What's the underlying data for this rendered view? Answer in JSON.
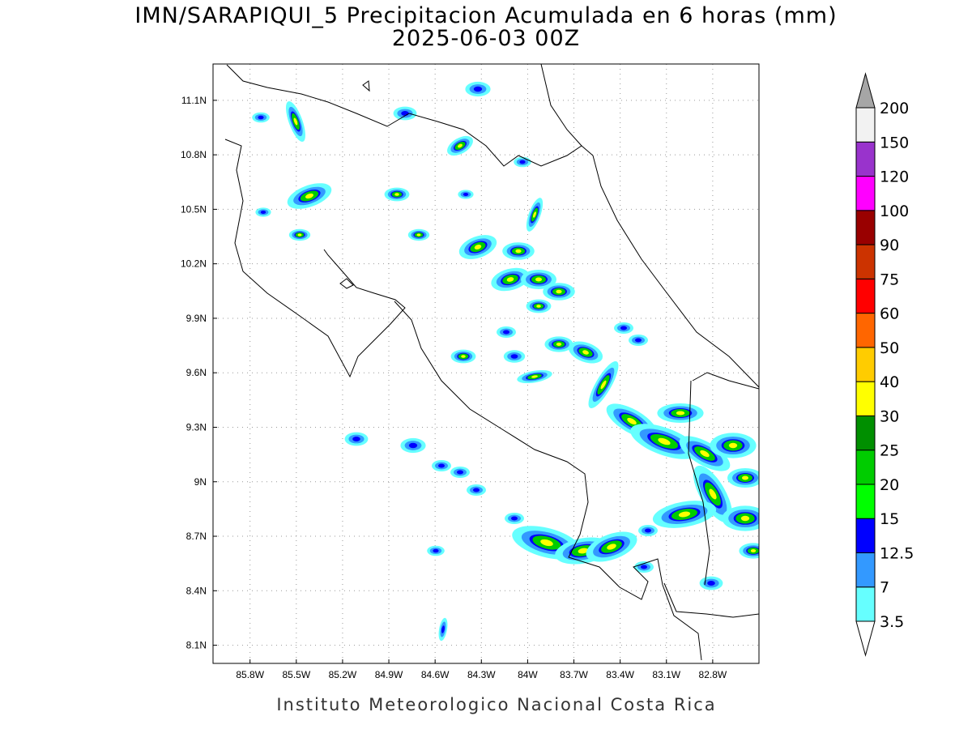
{
  "title": "IMN/SARAPIQUI_5 Precipitacion Acumulada en 6 horas (mm)",
  "subtitle": "2025-06-03 00Z",
  "footer": "Instituto Meteorologico Nacional Costa Rica",
  "map": {
    "lon_range": [
      -86.04,
      -82.5
    ],
    "lat_range": [
      8.0,
      11.3
    ],
    "grid": true,
    "lon_ticks": [
      {
        "value": -85.8,
        "label": "85.8W"
      },
      {
        "value": -85.5,
        "label": "85.5W"
      },
      {
        "value": -85.2,
        "label": "85.2W"
      },
      {
        "value": -84.9,
        "label": "84.9W"
      },
      {
        "value": -84.6,
        "label": "84.6W"
      },
      {
        "value": -84.3,
        "label": "84.3W"
      },
      {
        "value": -84.0,
        "label": "84W"
      },
      {
        "value": -83.7,
        "label": "83.7W"
      },
      {
        "value": -83.4,
        "label": "83.4W"
      },
      {
        "value": -83.1,
        "label": "83.1W"
      },
      {
        "value": -82.8,
        "label": "82.8W"
      }
    ],
    "lat_ticks": [
      {
        "value": 8.1,
        "label": "8.1N"
      },
      {
        "value": 8.4,
        "label": "8.4N"
      },
      {
        "value": 8.7,
        "label": "8.7N"
      },
      {
        "value": 9.0,
        "label": "9N"
      },
      {
        "value": 9.3,
        "label": "9.3N"
      },
      {
        "value": 9.6,
        "label": "9.6N"
      },
      {
        "value": 9.9,
        "label": "9.9N"
      },
      {
        "value": 10.2,
        "label": "10.2N"
      },
      {
        "value": 10.5,
        "label": "10.5N"
      },
      {
        "value": 10.8,
        "label": "10.8N"
      },
      {
        "value": 11.1,
        "label": "11.1N"
      }
    ]
  },
  "colorbar": {
    "levels": [
      3.5,
      7,
      12.5,
      15,
      20,
      25,
      30,
      40,
      50,
      60,
      75,
      90,
      100,
      120,
      150,
      200
    ],
    "colors": [
      "#ffffff",
      "#66ffff",
      "#3399ff",
      "#0000ff",
      "#00ff00",
      "#00cc00",
      "#008f00",
      "#ffff00",
      "#ffcc00",
      "#ff6600",
      "#ff0000",
      "#cc3300",
      "#990000",
      "#ff00ff",
      "#9933cc",
      "#f2f2f2",
      "#a6a6a6"
    ]
  }
}
